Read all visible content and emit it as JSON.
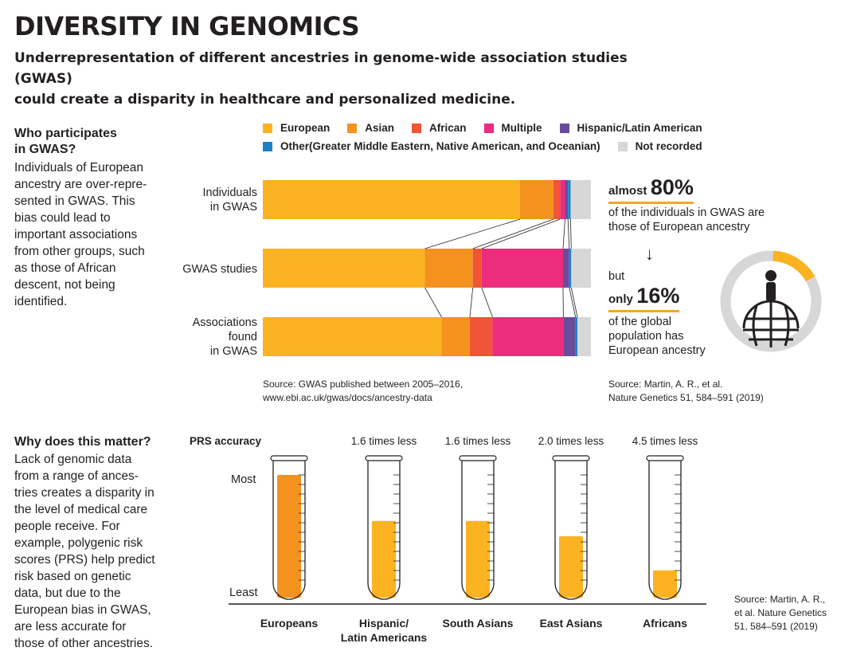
{
  "header": {
    "title": "DIVERSITY IN GENOMICS",
    "subtitle_line1": "Underrepresentation of different ancestries in genome-wide association studies (GWAS)",
    "subtitle_line2": "could create a disparity in healthcare and personalized medicine."
  },
  "section1": {
    "heading_line1": "Who participates",
    "heading_line2": "in GWAS?",
    "body": [
      "Individuals of European",
      "ancestry are over-repre-",
      "sented in GWAS. This",
      "bias could lead to",
      "important associations",
      "from other groups, such",
      "as those of African",
      "descent, not being",
      "identified."
    ]
  },
  "section2": {
    "heading": "Why does this matter?",
    "body": [
      "Lack of genomic data",
      "from a range of ances-",
      "tries creates a disparity in",
      "the level of medical care",
      "people receive. For",
      "example, polygenic risk",
      "scores (PRS) help predict",
      "risk based on genetic",
      "data, but due to the",
      "European bias in GWAS,",
      "are less accurate for",
      "those of other ancestries."
    ]
  },
  "legend": {
    "european": "European",
    "asian": "Asian",
    "african": "African",
    "multiple": "Multiple",
    "hispanic": "Hispanic/Latin American",
    "other": "Other(Greater Middle Eastern, Native American, and Oceanian)",
    "not_recorded": "Not recorded"
  },
  "colors": {
    "European": "#fbb321",
    "Asian": "#f4921f",
    "African": "#ef5536",
    "Multiple": "#ec2d7d",
    "Hispanic/Latin American": "#6a4c9c",
    "Other": "#1a83c6",
    "Not recorded": "#d7d7d7",
    "gauge_track": "#d7d7d7",
    "gauge_fill": "#fbb321"
  },
  "chart_data": [
    {
      "type": "bar",
      "orientation": "horizontal",
      "stacked": true,
      "categories": [
        "Individuals in GWAS",
        "GWAS studies",
        "Associations found in GWAS"
      ],
      "category_labels": [
        [
          "Individuals",
          "in GWAS"
        ],
        [
          "GWAS studies"
        ],
        [
          "Associations",
          "found",
          "in GWAS"
        ]
      ],
      "series": [
        {
          "name": "European",
          "values": [
            78.4,
            49.4,
            54.5
          ]
        },
        {
          "name": "Asian",
          "values": [
            10.2,
            14.6,
            8.6
          ]
        },
        {
          "name": "African",
          "values": [
            2.0,
            2.7,
            6.9
          ]
        },
        {
          "name": "Multiple",
          "values": [
            1.5,
            24.8,
            21.6
          ]
        },
        {
          "name": "Hispanic/Latin American",
          "values": [
            0.9,
            1.9,
            3.7
          ]
        },
        {
          "name": "Other",
          "values": [
            0.8,
            0.6,
            0.6
          ]
        },
        {
          "name": "Not recorded",
          "values": [
            6.2,
            6.0,
            4.1
          ]
        }
      ],
      "xlim": [
        0,
        100
      ],
      "source_line1": "Source: GWAS published between 2005–2016,",
      "source_line2": "www.ebi.ac.uk/gwas/docs/ancestry-data",
      "stats": {
        "first_prefix": "almost",
        "first_value": "80%",
        "first_text_line1": "of the individuals in GWAS are",
        "first_text_line2": "those of European ancestry",
        "arrow": "↓",
        "connector": "but",
        "second_prefix": "only",
        "second_value": "16%",
        "second_text": [
          "of the global",
          "population has",
          "European ancestry"
        ],
        "source_line1": "Source: Martin, A. R., et al.",
        "source_line2": "Nature Genetics 51, 584–591 (2019)",
        "gauge_fraction": 0.16
      }
    },
    {
      "type": "bar",
      "title": "PRS accuracy",
      "ylabel_top": "Most",
      "ylabel_bottom": "Least",
      "categories": [
        [
          "Europeans"
        ],
        [
          "Hispanic/",
          "Latin Americans"
        ],
        [
          "South Asians"
        ],
        [
          "East Asians"
        ],
        [
          "Africans"
        ]
      ],
      "annotations": [
        "",
        "1.6 times less",
        "1.6 times less",
        "2.0 times less",
        "4.5 times less"
      ],
      "values": [
        1.0,
        0.625,
        0.625,
        0.5,
        0.222
      ],
      "bar_colors": [
        "#f4921f",
        "#fbb321",
        "#fbb321",
        "#fbb321",
        "#fbb321"
      ],
      "source": [
        "Source: Martin, A. R.,",
        "et al. Nature Genetics",
        "51, 584–591 (2019)"
      ]
    }
  ]
}
